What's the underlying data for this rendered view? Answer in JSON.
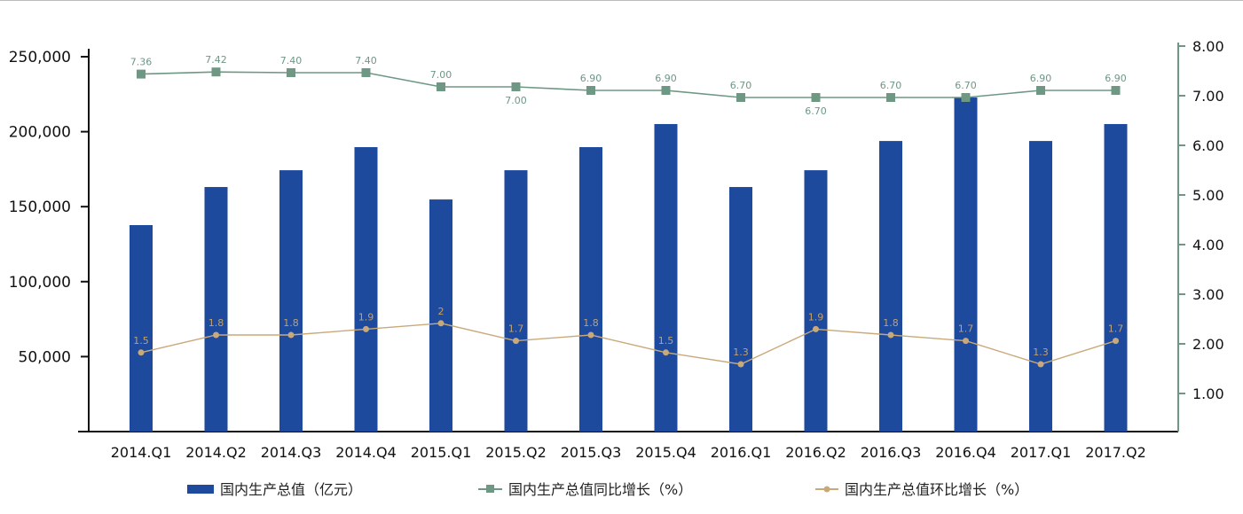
{
  "chart_data": {
    "type": "bar",
    "categories": [
      "2014.Q1",
      "2014.Q2",
      "2014.Q3",
      "2014.Q4",
      "2015.Q1",
      "2015.Q2",
      "2015.Q3",
      "2015.Q4",
      "2016.Q1",
      "2016.Q2",
      "2016.Q3",
      "2016.Q4",
      "2017.Q1",
      "2017.Q2"
    ],
    "left_axis": {
      "ylim": [
        0,
        250000
      ],
      "ticks": [
        "50,000",
        "100,000",
        "150,000",
        "200,000",
        "250,000"
      ],
      "tick_values": [
        50000,
        100000,
        150000,
        200000,
        250000
      ]
    },
    "right_axis": {
      "ylim": [
        0,
        8
      ],
      "ticks": [
        "1.00",
        "2.00",
        "3.00",
        "4.00",
        "5.00",
        "6.00",
        "7.00",
        "8.00"
      ],
      "tick_values": [
        1,
        2,
        3,
        4,
        5,
        6,
        7,
        8
      ]
    },
    "series": [
      {
        "name": "国内生产总值（亿元）",
        "type": "bar",
        "axis": "left",
        "color": "#1d4a9c",
        "values": [
          137700,
          163100,
          174300,
          189700,
          154800,
          174300,
          189700,
          205100,
          163100,
          174300,
          193800,
          222800,
          193800,
          205100
        ]
      },
      {
        "name": "国内生产总值同比增长（%）",
        "type": "line",
        "marker": "square",
        "color": "#6e9784",
        "values": [
          7.36,
          7.42,
          7.4,
          7.4,
          7.0,
          7.0,
          6.9,
          6.9,
          6.7,
          6.7,
          6.7,
          6.7,
          6.9,
          6.9
        ],
        "labels": [
          "7.36",
          "7.42",
          "7.40",
          "7.40",
          "7.00",
          "7.00",
          "6.90",
          "6.90",
          "6.70",
          "6.70",
          "6.70",
          "6.70",
          "6.90",
          "6.90"
        ]
      },
      {
        "name": "国内生产总值环比增长（%）",
        "type": "line",
        "marker": "circle",
        "color": "#c9a97a",
        "values": [
          1.5,
          1.8,
          1.8,
          1.9,
          2,
          1.7,
          1.8,
          1.5,
          1.3,
          1.9,
          1.8,
          1.7,
          1.3,
          1.7
        ],
        "labels": [
          "1.5",
          "1.8",
          "1.8",
          "1.9",
          "2",
          "1.7",
          "1.8",
          "1.5",
          "1.3",
          "1.9",
          "1.8",
          "1.7",
          "1.3",
          "1.7"
        ]
      }
    ],
    "legend_position": "bottom",
    "grid": false
  }
}
